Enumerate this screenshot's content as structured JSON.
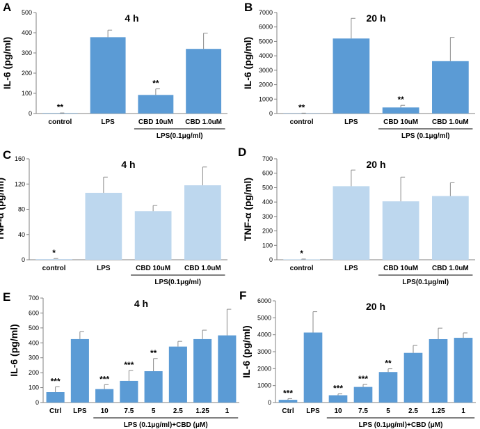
{
  "figure": {
    "description_free": true
  },
  "chart_data": [
    {
      "panel": "A",
      "type": "bar",
      "title": "4 h",
      "ylabel": "IL-6 (pg/ml)",
      "ylim": [
        0,
        500
      ],
      "yticks": [
        0,
        100,
        200,
        300,
        400,
        500
      ],
      "bar_color": "#5b9bd5",
      "categories": [
        "control",
        "LPS",
        "CBD 10uM",
        "CBD 1.0uM"
      ],
      "values": [
        2,
        378,
        92,
        320
      ],
      "errors": [
        1,
        35,
        30,
        78
      ],
      "annotations": [
        "**",
        "",
        "**",
        ""
      ],
      "bracket": {
        "from": 2,
        "to": 3,
        "label": "LPS(0.1μg/ml)"
      }
    },
    {
      "panel": "B",
      "type": "bar",
      "title": "20 h",
      "ylabel": "IL-6 (pg/ml)",
      "ylim": [
        0,
        7000
      ],
      "yticks": [
        0,
        1000,
        2000,
        3000,
        4000,
        5000,
        6000,
        7000
      ],
      "bar_color": "#5b9bd5",
      "categories": [
        "control",
        "LPS",
        "CBD 10uM",
        "CBD 1.0uM"
      ],
      "values": [
        20,
        5200,
        420,
        3630
      ],
      "errors": [
        10,
        1400,
        150,
        1650
      ],
      "annotations": [
        "**",
        "",
        "**",
        ""
      ],
      "bracket": {
        "from": 2,
        "to": 3,
        "label": "LPS (0.1μg/ml)"
      }
    },
    {
      "panel": "C",
      "type": "bar",
      "title": "4 h",
      "ylabel": "TNF-α (pg/ml)",
      "ylim": [
        0,
        160
      ],
      "yticks": [
        0,
        40,
        80,
        120,
        160
      ],
      "bar_color": "#bdd7ee",
      "categories": [
        "control",
        "LPS",
        "CBD 10uM",
        "CBD 1.0uM"
      ],
      "values": [
        1,
        106,
        77,
        118
      ],
      "errors": [
        1,
        25,
        9,
        29
      ],
      "annotations": [
        "*",
        "",
        "",
        ""
      ],
      "bracket": {
        "from": 2,
        "to": 3,
        "label": "LPS(0.1μg/ml)"
      }
    },
    {
      "panel": "D",
      "type": "bar",
      "title": "20 h",
      "ylabel": "TNF-α (pg/ml)",
      "ylim": [
        0,
        700
      ],
      "yticks": [
        0,
        100,
        200,
        300,
        400,
        500,
        600,
        700
      ],
      "bar_color": "#bdd7ee",
      "categories": [
        "control",
        "LPS",
        "CBD 10uM",
        "CBD 1.0uM"
      ],
      "values": [
        3,
        510,
        405,
        442
      ],
      "errors": [
        2,
        112,
        168,
        92
      ],
      "annotations": [
        "*",
        "",
        "",
        ""
      ],
      "bracket": {
        "from": 2,
        "to": 3,
        "label": "LPS(0.1μg/ml)"
      }
    },
    {
      "panel": "E",
      "type": "bar",
      "title": "4 h",
      "ylabel": "IL-6 (pg/ml)",
      "ylim": [
        0,
        700
      ],
      "yticks": [
        0,
        100,
        200,
        300,
        400,
        500,
        600,
        700
      ],
      "bar_color": "#5b9bd5",
      "categories": [
        "Ctrl",
        "LPS",
        "10",
        "7.5",
        "5",
        "2.5",
        "1.25",
        "1"
      ],
      "values": [
        70,
        425,
        90,
        145,
        210,
        375,
        425,
        450
      ],
      "errors": [
        35,
        50,
        30,
        70,
        85,
        35,
        60,
        175
      ],
      "annotations": [
        "***",
        "",
        "***",
        "***",
        "**",
        "",
        "",
        ""
      ],
      "bracket": {
        "from": 2,
        "to": 7,
        "label": "LPS (0.1μg/ml)+CBD (μM)"
      }
    },
    {
      "panel": "F",
      "type": "bar",
      "title": "20 h",
      "ylabel": "IL-6 (pg/ml)",
      "ylim": [
        0,
        6000
      ],
      "yticks": [
        0,
        1000,
        2000,
        3000,
        4000,
        5000,
        6000
      ],
      "bar_color": "#5b9bd5",
      "categories": [
        "Ctrl",
        "LPS",
        "10",
        "7.5",
        "5",
        "2.5",
        "1.25",
        "1"
      ],
      "values": [
        160,
        4130,
        430,
        920,
        1800,
        2930,
        3740,
        3820
      ],
      "errors": [
        70,
        1230,
        80,
        150,
        190,
        440,
        650,
        290
      ],
      "annotations": [
        "***",
        "",
        "***",
        "***",
        "**",
        "",
        "",
        ""
      ],
      "bracket": {
        "from": 2,
        "to": 7,
        "label": "LPS (0.1μg/ml)+CBD (μM)"
      }
    }
  ]
}
